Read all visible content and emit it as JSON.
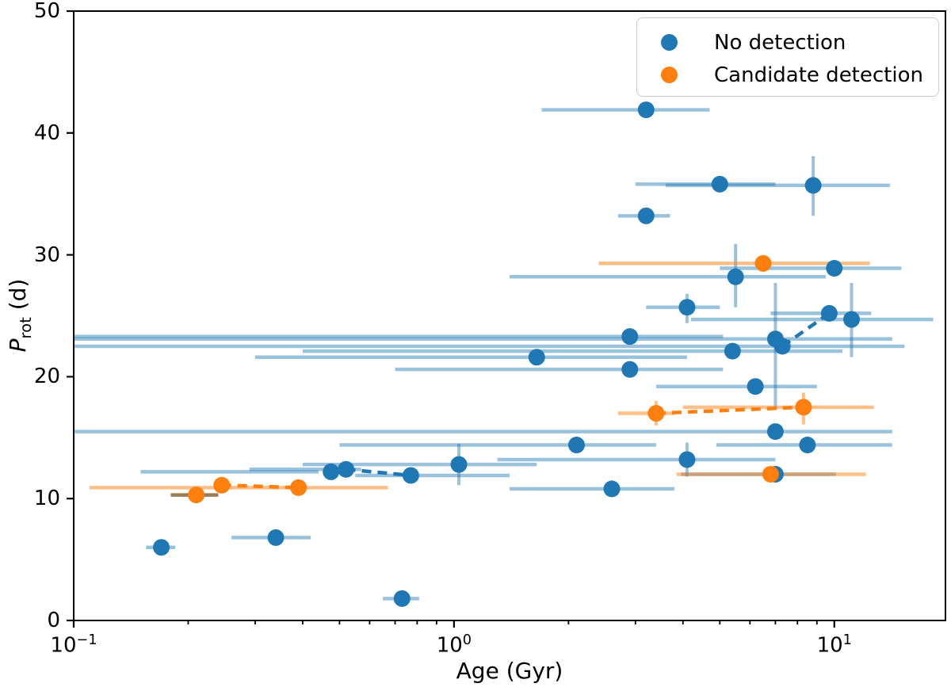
{
  "chart_data": {
    "type": "scatter",
    "title": "",
    "xlabel": "Age (Gyr)",
    "ylabel_main": "P",
    "ylabel_sub": "rot",
    "ylabel_unit": " (d)",
    "x_scale": "log",
    "xlim": [
      0.1,
      19.6
    ],
    "ylim": [
      0,
      50
    ],
    "x_major_ticks": [
      {
        "value": 0.1,
        "base": "10",
        "exp": "−1"
      },
      {
        "value": 1,
        "base": "10",
        "exp": "0"
      },
      {
        "value": 10,
        "base": "10",
        "exp": "1"
      }
    ],
    "x_minor_ticks": [
      0.2,
      0.3,
      0.4,
      0.5,
      0.6,
      0.7,
      0.8,
      0.9,
      2,
      3,
      4,
      5,
      6,
      7,
      8,
      9
    ],
    "y_ticks": [
      0,
      10,
      20,
      30,
      40,
      50
    ],
    "grid": false,
    "legend_position": "upper right",
    "series": [
      {
        "name": "No detection",
        "color": "#1f77b4",
        "errorbar_color": "rgba(31,119,180,0.45)",
        "points": [
          {
            "age": 3.2,
            "prot": 41.9,
            "age_err": [
              1.7,
              4.7
            ],
            "prot_err": null
          },
          {
            "age": 5.0,
            "prot": 35.8,
            "age_err": [
              3.0,
              7.0
            ],
            "prot_err": null
          },
          {
            "age": 8.8,
            "prot": 35.7,
            "age_err": [
              3.6,
              14.0
            ],
            "prot_err": [
              33.2,
              38.1
            ]
          },
          {
            "age": 3.2,
            "prot": 33.2,
            "age_err": [
              2.7,
              3.7
            ],
            "prot_err": null
          },
          {
            "age": 10.0,
            "prot": 28.9,
            "age_err": [
              5.0,
              15.0
            ],
            "prot_err": null
          },
          {
            "age": 5.5,
            "prot": 28.2,
            "age_err": [
              1.4,
              9.5
            ],
            "prot_err": [
              25.7,
              30.9
            ]
          },
          {
            "age": 4.1,
            "prot": 25.7,
            "age_err": [
              3.2,
              5.0
            ],
            "prot_err": [
              24.4,
              26.8
            ]
          },
          {
            "age": 9.7,
            "prot": 25.2,
            "age_err": [
              6.8,
              12.5
            ],
            "prot_err": null
          },
          {
            "age": 11.1,
            "prot": 24.7,
            "age_err": [
              4.2,
              18.2
            ],
            "prot_err": [
              21.6,
              27.7
            ]
          },
          {
            "age": 2.9,
            "prot": 23.3,
            "age_err": [
              0.1,
              5.1
            ],
            "prot_err": null
          },
          {
            "age": 7.0,
            "prot": 23.1,
            "age_err": [
              0.1,
              14.2
            ],
            "prot_err": [
              17.3,
              27.7
            ]
          },
          {
            "age": 7.3,
            "prot": 22.5,
            "age_err": [
              0.1,
              15.3
            ],
            "prot_err": null
          },
          {
            "age": 5.4,
            "prot": 22.1,
            "age_err": [
              0.4,
              10.5
            ],
            "prot_err": null
          },
          {
            "age": 1.65,
            "prot": 21.6,
            "age_err": [
              0.3,
              4.1
            ],
            "prot_err": null
          },
          {
            "age": 2.9,
            "prot": 20.6,
            "age_err": [
              0.7,
              5.1
            ],
            "prot_err": null
          },
          {
            "age": 6.2,
            "prot": 19.2,
            "age_err": [
              3.4,
              9.0
            ],
            "prot_err": null
          },
          {
            "age": 7.0,
            "prot": 15.5,
            "age_err": [
              0.1,
              14.2
            ],
            "prot_err": null
          },
          {
            "age": 8.5,
            "prot": 14.4,
            "age_err": [
              4.9,
              14.2
            ],
            "prot_err": null
          },
          {
            "age": 2.1,
            "prot": 14.4,
            "age_err": [
              0.5,
              3.4
            ],
            "prot_err": null
          },
          {
            "age": 4.1,
            "prot": 13.2,
            "age_err": [
              1.3,
              7.0
            ],
            "prot_err": [
              11.8,
              14.6
            ]
          },
          {
            "age": 1.03,
            "prot": 12.8,
            "age_err": [
              0.4,
              1.65
            ],
            "prot_err": [
              11.1,
              14.5
            ]
          },
          {
            "age": 0.52,
            "prot": 12.4,
            "age_err": [
              0.29,
              0.57
            ],
            "prot_err": null
          },
          {
            "age": 0.475,
            "prot": 12.2,
            "age_err": [
              0.15,
              0.44
            ],
            "prot_err": null
          },
          {
            "age": 0.77,
            "prot": 11.9,
            "age_err": [
              0.55,
              1.4
            ],
            "prot_err": null
          },
          {
            "age": 7.0,
            "prot": 12.0,
            "age_err": [
              3.95,
              10.1
            ],
            "prot_err": null
          },
          {
            "age": 2.6,
            "prot": 10.8,
            "age_err": [
              1.4,
              3.8
            ],
            "prot_err": null
          },
          {
            "age": 0.34,
            "prot": 6.8,
            "age_err": [
              0.26,
              0.42
            ],
            "prot_err": null
          },
          {
            "age": 0.17,
            "prot": 6.0,
            "age_err": [
              0.155,
              0.185
            ],
            "prot_err": null
          },
          {
            "age": 0.73,
            "prot": 1.8,
            "age_err": [
              0.65,
              0.81
            ],
            "prot_err": null
          }
        ]
      },
      {
        "name": "Candidate detection",
        "color": "#ff7f0e",
        "errorbar_color": "rgba(255,127,14,0.5)",
        "points": [
          {
            "age": 6.5,
            "prot": 29.3,
            "age_err": [
              2.4,
              12.4
            ],
            "prot_err": null
          },
          {
            "age": 8.3,
            "prot": 17.5,
            "age_err": [
              4.0,
              12.7
            ],
            "prot_err": [
              16.1,
              18.7
            ]
          },
          {
            "age": 3.4,
            "prot": 17.0,
            "age_err": [
              2.7,
              3.8
            ],
            "prot_err": [
              16.0,
              18.0
            ]
          },
          {
            "age": 6.8,
            "prot": 12.0,
            "age_err": [
              3.85,
              12.1
            ],
            "prot_err": null
          },
          {
            "age": 0.245,
            "prot": 11.1,
            "age_err": null,
            "prot_err": null
          },
          {
            "age": 0.39,
            "prot": 10.9,
            "age_err": [
              0.11,
              0.67
            ],
            "prot_err": null
          },
          {
            "age": 0.21,
            "prot": 10.3,
            "age_err": [
              0.18,
              0.24
            ],
            "prot_err": null,
            "err_color": "#9b7d55"
          }
        ]
      }
    ],
    "connectors": [
      {
        "series": 0,
        "x1": 0.52,
        "y1": 12.4,
        "x2": 0.77,
        "y2": 11.9
      },
      {
        "series": 0,
        "x1": 7.3,
        "y1": 22.5,
        "x2": 9.7,
        "y2": 25.2
      },
      {
        "series": 1,
        "x1": 3.4,
        "y1": 17.0,
        "x2": 8.3,
        "y2": 17.5
      },
      {
        "series": 1,
        "x1": 0.245,
        "y1": 11.1,
        "x2": 0.39,
        "y2": 10.9
      }
    ]
  }
}
